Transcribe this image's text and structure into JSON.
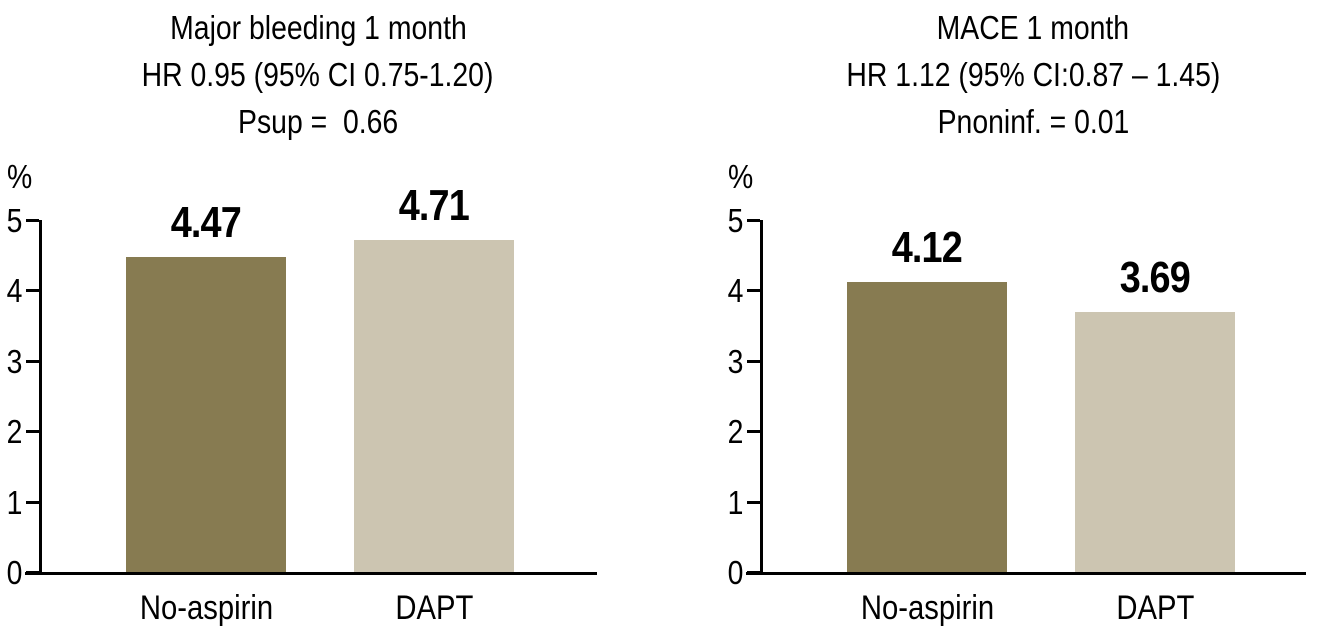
{
  "colors": {
    "no_aspirin_bar": "#877B51",
    "dapt_bar": "#CCC5B1",
    "axis": "#000000",
    "text": "#000000",
    "background": "#FFFFFF"
  },
  "chart_data": [
    {
      "type": "bar",
      "title": "Major bleeding 1 month",
      "subtitle": "HR 0.95 (95% CI 0.75-1.20)",
      "p_line": "Psup =  0.66",
      "ylabel": "%",
      "xlabel": "",
      "categories": [
        "No-aspirin",
        "DAPT"
      ],
      "values": [
        4.47,
        4.71
      ],
      "value_labels": [
        "4.47",
        "4.71"
      ],
      "bar_colors": [
        "#877B51",
        "#CCC5B1"
      ],
      "ylim": [
        0,
        5
      ],
      "y_ticks": [
        "0",
        "1",
        "2",
        "3",
        "4",
        "5"
      ],
      "grid": false,
      "legend": false
    },
    {
      "type": "bar",
      "title": "MACE 1 month",
      "subtitle": "HR 1.12 (95% CI:0.87 – 1.45)",
      "p_line": "Pnoninf. = 0.01",
      "ylabel": "%",
      "xlabel": "",
      "categories": [
        "No-aspirin",
        "DAPT"
      ],
      "values": [
        4.12,
        3.69
      ],
      "value_labels": [
        "4.12",
        "3.69"
      ],
      "bar_colors": [
        "#877B51",
        "#CCC5B1"
      ],
      "ylim": [
        0,
        5
      ],
      "y_ticks": [
        "0",
        "1",
        "2",
        "3",
        "4",
        "5"
      ],
      "grid": false,
      "legend": false
    }
  ]
}
